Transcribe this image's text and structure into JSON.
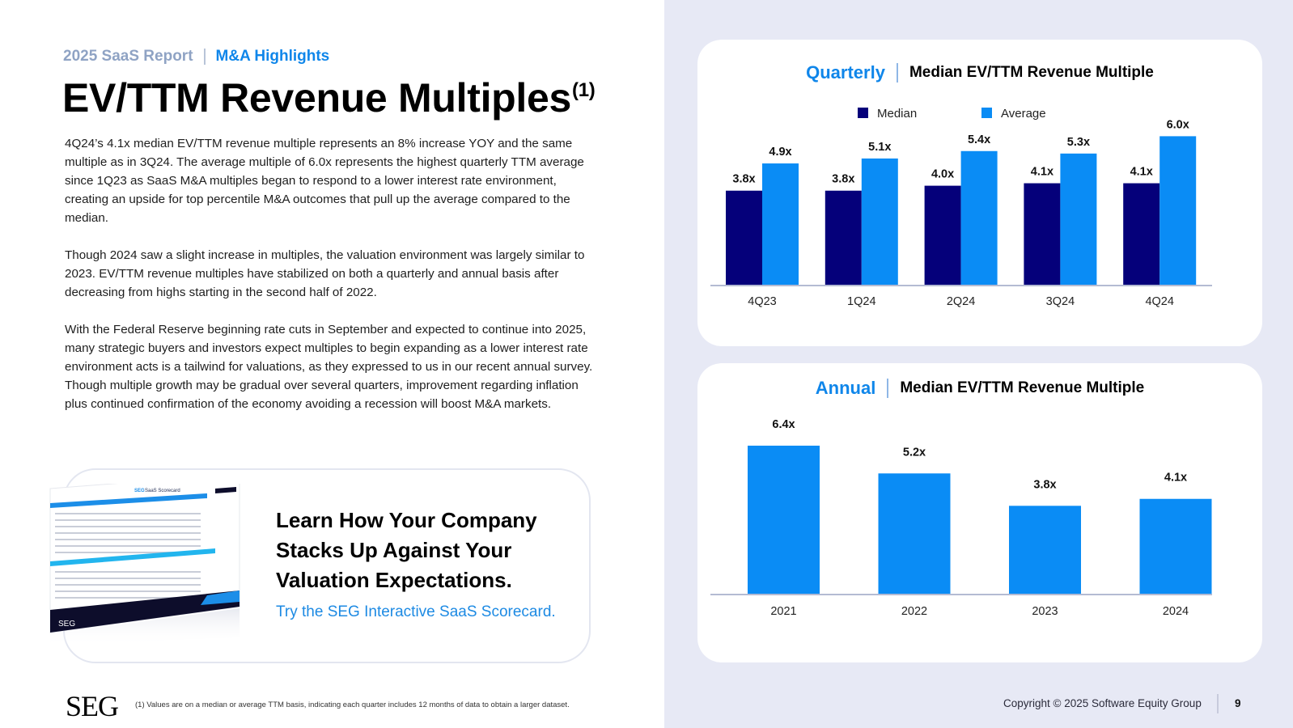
{
  "header": {
    "report": "2025 SaaS Report",
    "section": "M&A Highlights",
    "title": "EV/TTM Revenue Multiples",
    "title_footnote_ref": "(1)"
  },
  "body": {
    "paragraphs": [
      "4Q24’s 4.1x median EV/TTM revenue multiple represents an 8% increase YOY and the same multiple as in 3Q24. The average multiple of 6.0x represents the highest quarterly TTM average since 1Q23 as SaaS M&A multiples began to respond to a lower interest rate environment, creating an upside for top percentile M&A outcomes that pull up the average compared to the median.",
      "Though 2024 saw a slight increase in multiples, the valuation environment was largely similar to 2023. EV/TTM revenue multiples have stabilized on both a quarterly and annual basis after decreasing from highs starting in the second half of 2022.",
      "With the Federal Reserve beginning rate cuts in September and expected to continue into 2025, many strategic buyers and investors expect multiples to begin expanding as a lower interest rate environment acts is a tailwind for valuations, as they expressed to us in our recent annual survey. Though multiple growth may be gradual over several quarters, improvement regarding inflation plus continued confirmation of the economy avoiding a recession will boost M&A markets."
    ]
  },
  "cta": {
    "heading_lines": [
      "Learn How Your Company",
      "Stacks Up Against Your",
      "Valuation Expectations."
    ],
    "link": "Try the SEG Interactive SaaS Scorecard.",
    "image": {
      "title_brand": "SEG",
      "title_rest": "SaaS Scorecard",
      "footer_brand": "SEG"
    }
  },
  "footer": {
    "logo": "SEG",
    "footnote": "(1) Values are on a median or average TTM basis, indicating each quarter includes 12 months of data to obtain a larger dataset.",
    "copyright": "Copyright © 2025 Software Equity Group",
    "page": "9"
  },
  "colors": {
    "median": "#05007a",
    "average": "#0a8cf5",
    "accent": "#0f86ea",
    "axis": "#b4bbd3"
  },
  "chart_data": [
    {
      "type": "bar",
      "title_kind": "Quarterly",
      "title": "Median EV/TTM Revenue Multiple",
      "categories": [
        "4Q23",
        "1Q24",
        "2Q24",
        "3Q24",
        "4Q24"
      ],
      "series": [
        {
          "name": "Median",
          "values": [
            3.8,
            3.8,
            4.0,
            4.1,
            4.1
          ],
          "labels": [
            "3.8x",
            "3.8x",
            "4.0x",
            "4.1x",
            "4.1x"
          ]
        },
        {
          "name": "Average",
          "values": [
            4.9,
            5.1,
            5.4,
            5.3,
            6.0
          ],
          "labels": [
            "4.9x",
            "5.1x",
            "5.4x",
            "5.3x",
            "6.0x"
          ]
        }
      ],
      "legend": [
        "Median",
        "Average"
      ],
      "legend_position": "top",
      "xlabel": "",
      "ylabel": "",
      "ylim": [
        0,
        6.0
      ],
      "grid": false
    },
    {
      "type": "bar",
      "title_kind": "Annual",
      "title": "Median EV/TTM Revenue Multiple",
      "categories": [
        "2021",
        "2022",
        "2023",
        "2024"
      ],
      "values": [
        6.4,
        5.2,
        3.8,
        4.1
      ],
      "labels": [
        "6.4x",
        "5.2x",
        "3.8x",
        "4.1x"
      ],
      "xlabel": "",
      "ylabel": "",
      "ylim": [
        0,
        6.4
      ],
      "grid": false
    }
  ]
}
